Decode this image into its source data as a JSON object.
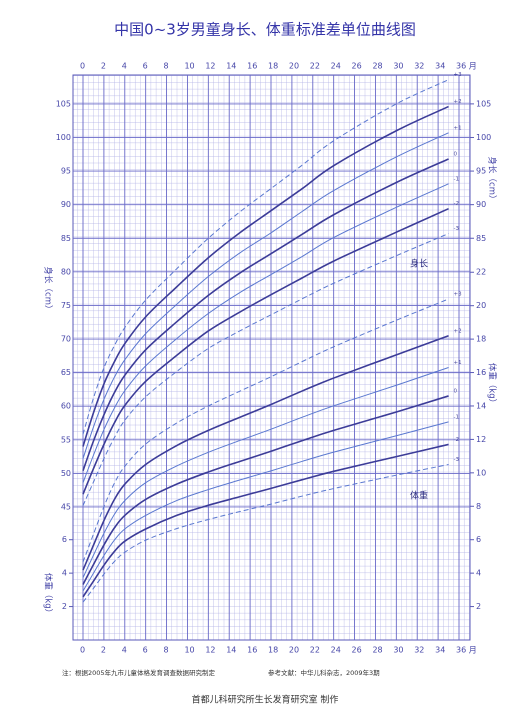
{
  "chart_data": {
    "type": "line",
    "title": "中国0~3岁男童身长、体重标准差单位曲线图",
    "ylabel": "身长（cm）",
    "y2label": "体重（kg）",
    "annotations": [
      "身长",
      "体重"
    ],
    "note": "注：根据2005年九市儿童体格发育调查数据研究制定",
    "reference": "参考文献：中华儿科杂志，2009年3期",
    "credit": "首都儿科研究所生长发育研究室  制作",
    "x": [
      0,
      1,
      2,
      3,
      4,
      6,
      9,
      12,
      15,
      18,
      21,
      24,
      30,
      35
    ],
    "xlim": [
      0,
      36
    ],
    "xticks": [
      0,
      2,
      4,
      6,
      8,
      10,
      12,
      14,
      16,
      18,
      20,
      22,
      24,
      26,
      28,
      30,
      32,
      34,
      {
        "value": 36,
        "label": "36 月"
      }
    ],
    "ylim": [
      25.2,
      109.3
    ],
    "yticks": [
      45,
      50,
      55,
      60,
      65,
      70,
      75,
      80,
      85,
      90,
      95,
      100,
      105
    ],
    "yticks_right": [
      85,
      90,
      95,
      100,
      105
    ],
    "y2lim": [
      0,
      33.8
    ],
    "y2ticks_left": [
      2,
      4,
      6
    ],
    "y2ticks": [
      2,
      4,
      6,
      8,
      10,
      12,
      14,
      16,
      18,
      20,
      22
    ],
    "grid": true,
    "series": [
      {
        "name": "+3",
        "color": "#5a78d0",
        "dash": true,
        "width": 1,
        "values": [
          55.8,
          61.2,
          65.7,
          69.0,
          71.7,
          75.8,
          80.5,
          85.0,
          88.9,
          92.4,
          95.9,
          99.5,
          105.0,
          108.6
        ]
      },
      {
        "name": "+2",
        "color": "#3c3c98",
        "dash": false,
        "width": 1.6,
        "values": [
          54.0,
          59.0,
          63.3,
          66.6,
          69.3,
          73.3,
          77.8,
          82.1,
          85.8,
          89.1,
          92.4,
          95.8,
          101.0,
          104.6
        ]
      },
      {
        "name": "+1",
        "color": "#5a78d0",
        "dash": false,
        "width": 1,
        "values": [
          52.2,
          56.9,
          61.0,
          64.3,
          66.9,
          70.8,
          75.2,
          79.3,
          82.8,
          85.8,
          89.0,
          92.1,
          97.1,
          100.7
        ]
      },
      {
        "name": "0",
        "color": "#3c3c98",
        "dash": false,
        "width": 1.6,
        "values": [
          50.4,
          54.8,
          58.7,
          62.0,
          64.6,
          68.4,
          72.6,
          76.5,
          79.8,
          82.7,
          85.6,
          88.5,
          93.3,
          96.8
        ]
      },
      {
        "name": "-1",
        "color": "#5a78d0",
        "dash": false,
        "width": 1,
        "values": [
          48.6,
          52.7,
          56.5,
          59.7,
          62.3,
          66.0,
          70.1,
          73.8,
          76.9,
          79.6,
          82.3,
          85.1,
          89.6,
          93.1
        ]
      },
      {
        "name": "-2",
        "color": "#3c3c98",
        "dash": false,
        "width": 1.6,
        "values": [
          46.9,
          50.7,
          54.3,
          57.5,
          60.1,
          63.7,
          67.6,
          71.2,
          74.0,
          76.6,
          79.1,
          81.6,
          85.9,
          89.4
        ]
      },
      {
        "name": "-3",
        "color": "#5a78d0",
        "dash": true,
        "width": 1,
        "values": [
          45.2,
          48.7,
          52.2,
          55.3,
          57.9,
          61.4,
          65.2,
          68.6,
          71.2,
          73.6,
          76.0,
          78.3,
          82.4,
          85.7
        ]
      },
      {
        "name": "+3",
        "axis": "y2",
        "color": "#5a78d0",
        "dash": true,
        "width": 1,
        "values": [
          4.66,
          6.33,
          7.97,
          9.37,
          10.39,
          11.72,
          12.99,
          14.0,
          14.88,
          15.75,
          16.66,
          17.54,
          19.13,
          20.4
        ]
      },
      {
        "name": "+2",
        "axis": "y2",
        "color": "#3c3c98",
        "dash": false,
        "width": 1.6,
        "values": [
          4.18,
          5.67,
          7.14,
          8.4,
          9.32,
          10.5,
          11.64,
          12.54,
          13.32,
          14.09,
          14.9,
          15.67,
          17.06,
          18.2
        ]
      },
      {
        "name": "+1",
        "axis": "y2",
        "color": "#5a78d0",
        "dash": false,
        "width": 1,
        "values": [
          3.73,
          5.07,
          6.38,
          7.51,
          8.34,
          9.41,
          10.42,
          11.23,
          11.93,
          12.61,
          13.33,
          14.01,
          15.24,
          16.3
        ]
      },
      {
        "name": "0",
        "axis": "y2",
        "color": "#3c3c98",
        "dash": false,
        "width": 1.6,
        "values": [
          3.32,
          4.51,
          5.68,
          6.7,
          7.45,
          8.41,
          9.33,
          10.05,
          10.68,
          11.29,
          11.93,
          12.54,
          13.64,
          14.6
        ]
      },
      {
        "name": "-1",
        "axis": "y2",
        "color": "#5a78d0",
        "dash": false,
        "width": 1,
        "values": [
          2.93,
          3.99,
          5.05,
          5.97,
          6.64,
          7.45,
          8.35,
          9.0,
          9.57,
          10.12,
          10.69,
          11.24,
          12.22,
          13.05
        ]
      },
      {
        "name": "-2",
        "axis": "y2",
        "color": "#3c3c98",
        "dash": false,
        "width": 1.6,
        "values": [
          2.58,
          3.52,
          4.47,
          5.29,
          5.91,
          6.64,
          7.46,
          8.06,
          8.57,
          9.07,
          9.59,
          10.09,
          10.97,
          11.7
        ]
      },
      {
        "name": "-3",
        "axis": "y2",
        "color": "#5a78d0",
        "dash": true,
        "width": 1,
        "values": [
          2.26,
          3.09,
          3.94,
          4.69,
          5.25,
          5.97,
          6.67,
          7.21,
          7.68,
          8.13,
          8.61,
          9.06,
          9.86,
          10.5
        ]
      }
    ]
  }
}
